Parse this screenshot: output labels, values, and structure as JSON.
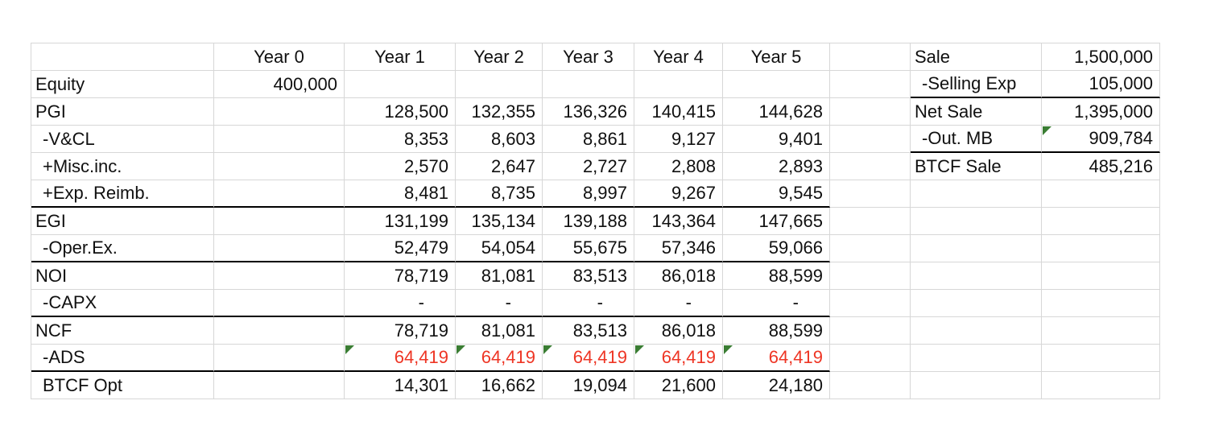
{
  "cashflow": {
    "year_headers": [
      "Year 0",
      "Year 1",
      "Year 2",
      "Year 3",
      "Year 4",
      "Year 5"
    ],
    "rows": [
      {
        "label": "Equity",
        "indent": false,
        "year0": "400,000",
        "values": [
          "",
          "",
          "",
          "",
          ""
        ]
      },
      {
        "label": "PGI",
        "indent": false,
        "year0": "",
        "values": [
          "128,500",
          "132,355",
          "136,326",
          "140,415",
          "144,628"
        ]
      },
      {
        "label": "-V&CL",
        "indent": true,
        "year0": "",
        "values": [
          "8,353",
          "8,603",
          "8,861",
          "9,127",
          "9,401"
        ]
      },
      {
        "label": "+Misc.inc.",
        "indent": true,
        "year0": "",
        "values": [
          "2,570",
          "2,647",
          "2,727",
          "2,808",
          "2,893"
        ]
      },
      {
        "label": "+Exp. Reimb.",
        "indent": true,
        "year0": "",
        "values": [
          "8,481",
          "8,735",
          "8,997",
          "9,267",
          "9,545"
        ],
        "bottom_border": true
      },
      {
        "label": "EGI",
        "indent": false,
        "year0": "",
        "values": [
          "131,199",
          "135,134",
          "139,188",
          "143,364",
          "147,665"
        ]
      },
      {
        "label": "-Oper.Ex.",
        "indent": true,
        "year0": "",
        "values": [
          "52,479",
          "54,054",
          "55,675",
          "57,346",
          "59,066"
        ],
        "bottom_border": true
      },
      {
        "label": "NOI",
        "indent": false,
        "year0": "",
        "values": [
          "78,719",
          "81,081",
          "83,513",
          "86,018",
          "88,599"
        ]
      },
      {
        "label": "-CAPX",
        "indent": true,
        "year0": "",
        "values": [
          "-",
          "-",
          "-",
          "-",
          "-"
        ],
        "bottom_border": true,
        "dash_row": true
      },
      {
        "label": "NCF",
        "indent": false,
        "year0": "",
        "values": [
          "78,719",
          "81,081",
          "83,513",
          "86,018",
          "88,599"
        ]
      },
      {
        "label": "-ADS",
        "indent": true,
        "year0": "",
        "values": [
          "64,419",
          "64,419",
          "64,419",
          "64,419",
          "64,419"
        ],
        "bottom_border": true,
        "red": true,
        "triangles": true
      },
      {
        "label": "BTCF Opt",
        "indent": true,
        "year0": "",
        "values": [
          "14,301",
          "16,662",
          "19,094",
          "21,600",
          "24,180"
        ]
      }
    ]
  },
  "sale": {
    "rows": [
      {
        "label": "Sale",
        "indent": false,
        "value": "1,500,000"
      },
      {
        "label": "-Selling Exp",
        "indent": true,
        "value": "105,000",
        "bottom_border": true
      },
      {
        "label": "Net Sale",
        "indent": false,
        "value": "1,395,000"
      },
      {
        "label": "-Out. MB",
        "indent": true,
        "value": "909,784",
        "bottom_border": true,
        "triangle": true
      },
      {
        "label": "BTCF Sale",
        "indent": false,
        "value": "485,216"
      }
    ]
  },
  "colors": {
    "red_text": "#ee3524",
    "triangle_green": "#3a7d33",
    "gridline": "#d7d7d7",
    "sum_border": "#000000"
  }
}
